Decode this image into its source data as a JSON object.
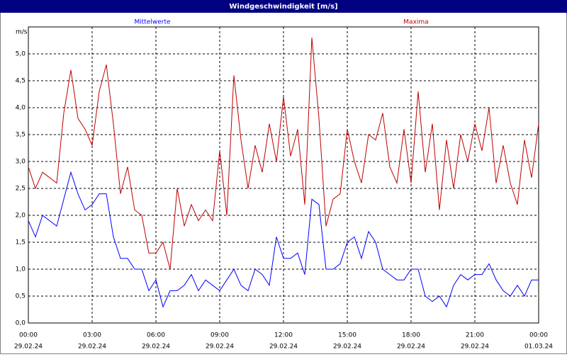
{
  "chart_data": {
    "type": "line",
    "title": "Windgeschwindigkeit [m/s]",
    "y_unit": "m/s",
    "x": [
      0,
      20,
      40,
      60,
      80,
      100,
      120,
      140,
      160,
      180,
      200,
      220,
      240,
      260,
      280,
      300,
      320,
      340,
      360,
      380,
      400,
      420,
      440,
      460,
      480,
      500,
      520,
      540,
      560,
      580,
      600,
      620,
      640,
      660,
      680,
      700,
      720,
      740,
      760,
      780,
      800,
      820,
      840,
      860,
      880,
      900,
      920,
      940,
      960,
      980,
      1000,
      1020,
      1040,
      1060,
      1080,
      1100,
      1120,
      1140,
      1160,
      1180,
      1200,
      1220,
      1240,
      1260,
      1280,
      1300,
      1320,
      1340,
      1360,
      1380,
      1400,
      1420,
      1440
    ],
    "series": [
      {
        "name": "Mittelwerte",
        "color": "#0000ff",
        "values": [
          1.9,
          1.6,
          2.0,
          1.9,
          1.8,
          2.3,
          2.8,
          2.4,
          2.1,
          2.2,
          2.4,
          2.4,
          1.6,
          1.2,
          1.2,
          1.0,
          1.0,
          0.6,
          0.8,
          0.3,
          0.6,
          0.6,
          0.7,
          0.9,
          0.6,
          0.8,
          0.7,
          0.6,
          0.8,
          1.0,
          0.7,
          0.6,
          1.0,
          0.9,
          0.7,
          1.6,
          1.2,
          1.2,
          1.3,
          0.9,
          2.3,
          2.2,
          1.0,
          1.0,
          1.1,
          1.5,
          1.6,
          1.2,
          1.7,
          1.5,
          1.0,
          0.9,
          0.8,
          0.8,
          1.0,
          1.0,
          0.5,
          0.4,
          0.5,
          0.3,
          0.7,
          0.9,
          0.8,
          0.9,
          0.9,
          1.1,
          0.8,
          0.6,
          0.5,
          0.7,
          0.5,
          0.8,
          0.8
        ]
      },
      {
        "name": "Maxima",
        "color": "#c00000",
        "values": [
          2.9,
          2.5,
          2.8,
          2.7,
          2.6,
          3.9,
          4.7,
          3.8,
          3.6,
          3.3,
          4.3,
          4.8,
          3.7,
          2.4,
          2.9,
          2.1,
          2.0,
          1.3,
          1.3,
          1.5,
          1.0,
          2.5,
          1.8,
          2.2,
          1.9,
          2.1,
          1.9,
          3.2,
          2.0,
          4.6,
          3.4,
          2.5,
          3.3,
          2.8,
          3.7,
          3.0,
          4.2,
          3.1,
          3.6,
          2.2,
          5.3,
          3.8,
          1.8,
          2.3,
          2.4,
          3.6,
          3.0,
          2.6,
          3.5,
          3.4,
          3.9,
          2.9,
          2.6,
          3.6,
          2.6,
          4.3,
          2.8,
          3.7,
          2.1,
          3.4,
          2.5,
          3.5,
          3.0,
          3.7,
          3.2,
          4.0,
          2.6,
          3.3,
          2.6,
          2.2,
          3.4,
          2.7,
          3.7
        ]
      }
    ],
    "xlim": [
      0,
      1440
    ],
    "xticks": [
      {
        "value": 0,
        "label": "00:00"
      },
      {
        "value": 180,
        "label": "03:00"
      },
      {
        "value": 360,
        "label": "06:00"
      },
      {
        "value": 540,
        "label": "09:00"
      },
      {
        "value": 720,
        "label": "12:00"
      },
      {
        "value": 900,
        "label": "15:00"
      },
      {
        "value": 1080,
        "label": "18:00"
      },
      {
        "value": 1260,
        "label": "21:00"
      },
      {
        "value": 1440,
        "label": "00:00"
      }
    ],
    "xtick_dates": [
      "29.02.24",
      "29.02.24",
      "29.02.24",
      "29.02.24",
      "29.02.24",
      "29.02.24",
      "29.02.24",
      "29.02.24",
      "01.03.24"
    ],
    "ylim": [
      0,
      5.5
    ],
    "yticks": [
      {
        "value": 0,
        "label": "0,0"
      },
      {
        "value": 0.5,
        "label": "0,5"
      },
      {
        "value": 1,
        "label": "1,0"
      },
      {
        "value": 1.5,
        "label": "1,5"
      },
      {
        "value": 2,
        "label": "2,0"
      },
      {
        "value": 2.5,
        "label": "2,5"
      },
      {
        "value": 3,
        "label": "3,0"
      },
      {
        "value": 3.5,
        "label": "3,5"
      },
      {
        "value": 4,
        "label": "4,0"
      },
      {
        "value": 4.5,
        "label": "4,5"
      },
      {
        "value": 5,
        "label": "5,0"
      }
    ],
    "grid": true
  }
}
